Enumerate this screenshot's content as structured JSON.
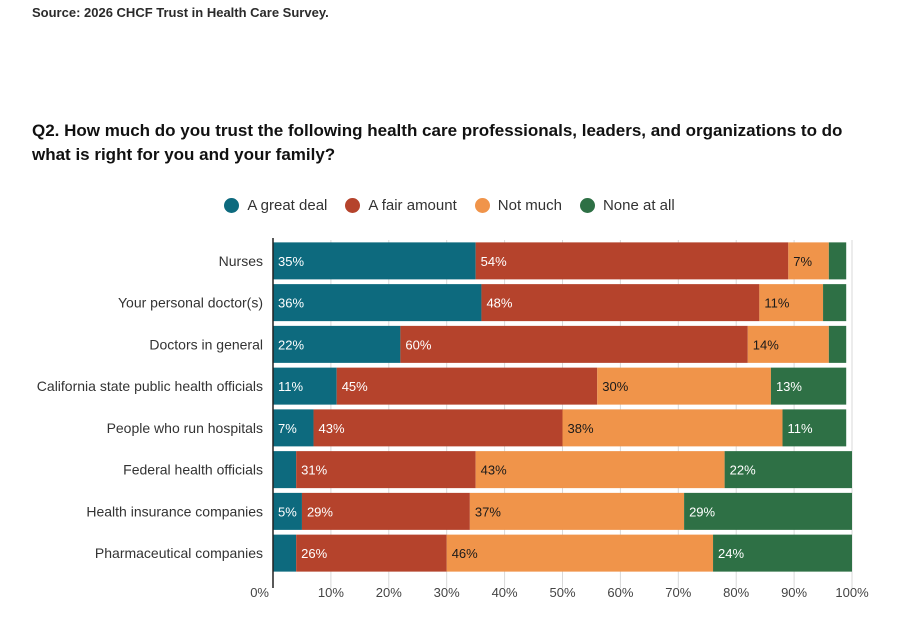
{
  "source": "Source: 2026 CHCF Trust in Health Care Survey.",
  "chart_data": {
    "type": "bar",
    "orientation": "horizontal",
    "stacked": true,
    "title": "Q2. How much do you trust the following health care professionals, leaders, and organizations to do what is right for you and your family?",
    "categories": [
      "Nurses",
      "Your personal doctor(s)",
      "Doctors in general",
      "California state public health officials",
      "People who run hospitals",
      "Federal health officials",
      "Health insurance companies",
      "Pharmaceutical companies"
    ],
    "series": [
      {
        "name": "A great deal",
        "color": "#0d6a7e",
        "values": [
          35,
          36,
          22,
          11,
          7,
          4,
          5,
          4
        ],
        "labels": [
          "35%",
          "36%",
          "22%",
          "11%",
          "7%",
          "",
          "5%",
          ""
        ]
      },
      {
        "name": "A fair amount",
        "color": "#b5432c",
        "values": [
          54,
          48,
          60,
          45,
          43,
          31,
          29,
          26
        ],
        "labels": [
          "54%",
          "48%",
          "60%",
          "45%",
          "43%",
          "31%",
          "29%",
          "26%"
        ]
      },
      {
        "name": "Not much",
        "color": "#f0944a",
        "values": [
          7,
          11,
          14,
          30,
          38,
          43,
          37,
          46
        ],
        "labels": [
          "7%",
          "11%",
          "14%",
          "30%",
          "38%",
          "43%",
          "37%",
          "46%"
        ]
      },
      {
        "name": "None at all",
        "color": "#2e7045",
        "values": [
          3,
          4,
          3,
          13,
          11,
          22,
          29,
          24
        ],
        "labels": [
          "",
          "",
          "",
          "13%",
          "11%",
          "22%",
          "29%",
          "24%"
        ]
      }
    ],
    "xlim": [
      0,
      100
    ],
    "xticks": [
      "0%",
      "10%",
      "20%",
      "30%",
      "40%",
      "50%",
      "60%",
      "70%",
      "80%",
      "90%",
      "100%"
    ],
    "legend_position": "top-center",
    "grid": true
  }
}
